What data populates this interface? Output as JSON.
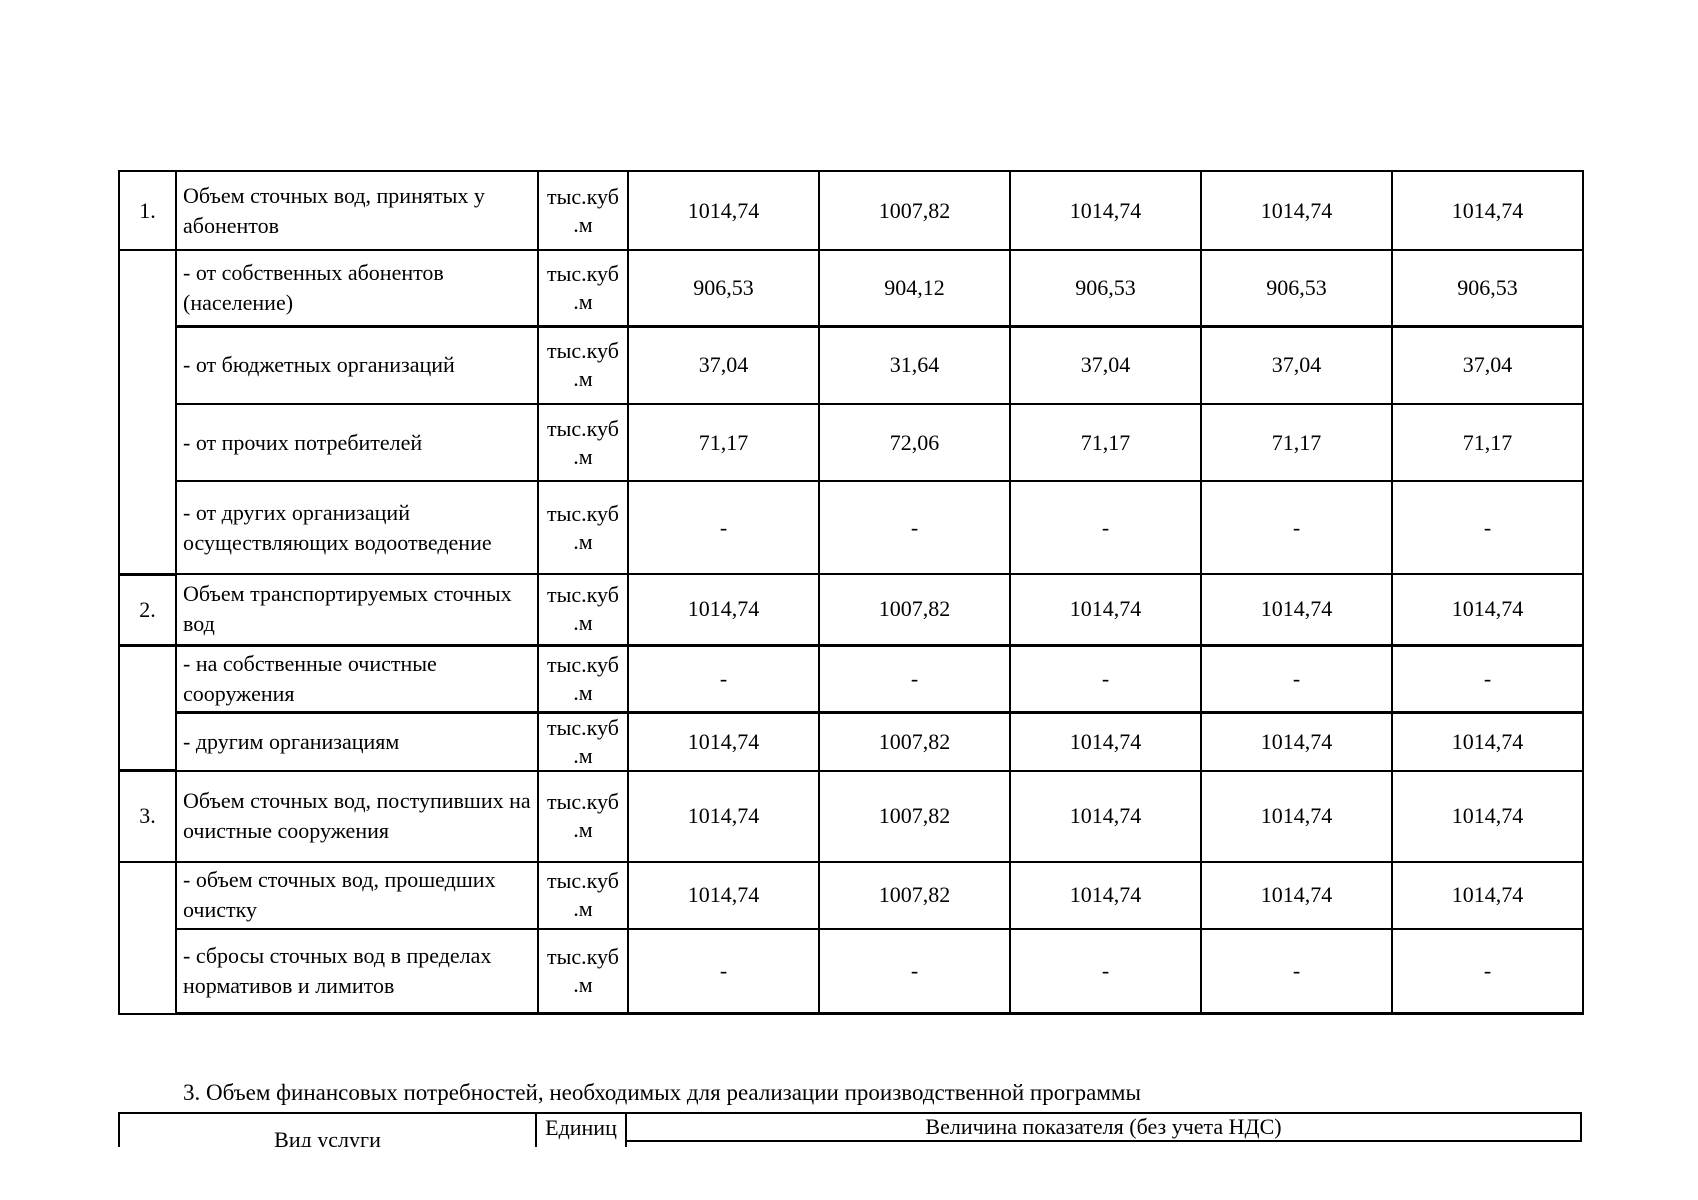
{
  "table1": {
    "unit_text": "тыс.куб\n.м",
    "rows": [
      {
        "num": "1.",
        "name": "Объем сточных вод, принятых у абонентов",
        "values": [
          "1014,74",
          "1007,82",
          "1014,74",
          "1014,74",
          "1014,74"
        ]
      },
      {
        "num": "",
        "name": "- от собственных абонентов (население)",
        "values": [
          "906,53",
          "904,12",
          "906,53",
          "906,53",
          "906,53"
        ]
      },
      {
        "name": "- от бюджетных организаций",
        "values": [
          "37,04",
          "31,64",
          "37,04",
          "37,04",
          "37,04"
        ]
      },
      {
        "name": "- от прочих потребителей",
        "values": [
          "71,17",
          "72,06",
          "71,17",
          "71,17",
          "71,17"
        ]
      },
      {
        "name": "- от других организаций осуществляющих водоотведение",
        "values": [
          "-",
          "-",
          "-",
          "-",
          "-"
        ]
      },
      {
        "num": "2.",
        "name": "Объем транспортируемых сточных вод",
        "values": [
          "1014,74",
          "1007,82",
          "1014,74",
          "1014,74",
          "1014,74"
        ]
      },
      {
        "num": "",
        "name": "- на собственные очистные сооружения",
        "values": [
          "-",
          "-",
          "-",
          "-",
          "-"
        ]
      },
      {
        "name": "- другим организациям",
        "values": [
          "1014,74",
          "1007,82",
          "1014,74",
          "1014,74",
          "1014,74"
        ]
      },
      {
        "num": "3.",
        "name": "Объем сточных вод, поступивших на очистные сооружения",
        "values": [
          "1014,74",
          "1007,82",
          "1014,74",
          "1014,74",
          "1014,74"
        ]
      },
      {
        "num": "",
        "name": "- объем сточных вод, прошедших очистку",
        "values": [
          "1014,74",
          "1007,82",
          "1014,74",
          "1014,74",
          "1014,74"
        ]
      },
      {
        "name": "- сбросы сточных вод в пределах нормативов и лимитов",
        "values": [
          "-",
          "-",
          "-",
          "-",
          "-"
        ]
      }
    ]
  },
  "section3": {
    "title": "3. Объем финансовых потребностей, необходимых для реализации производственной программы",
    "table2": {
      "col_service": "Вид услуги",
      "col_unit": "Единиц",
      "col_value": "Величина показателя (без учета НДС)"
    }
  }
}
